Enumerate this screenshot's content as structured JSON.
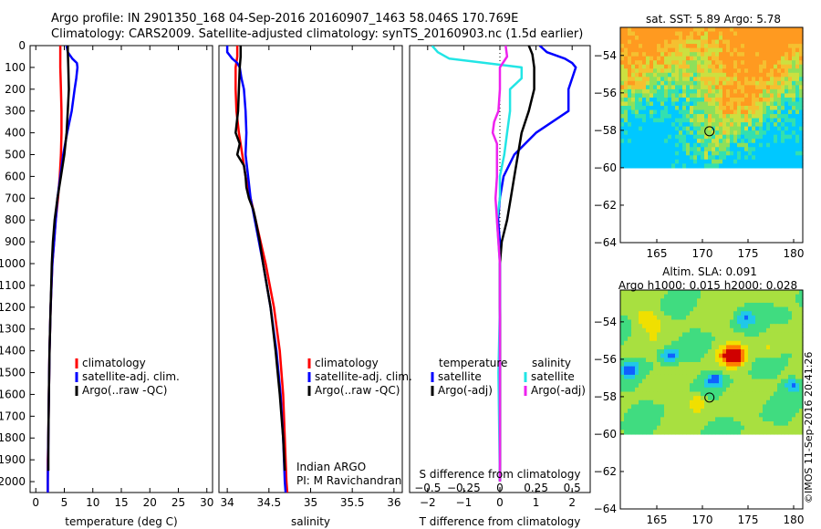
{
  "header": {
    "line1": "Argo profile: IN 2901350_168 04-Sep-2016 20160907_1463 58.046S 170.769E",
    "line2": "Climatology: CARS2009. Satellite-adjusted climatology: synTS_20160903.nc (1.5d earlier)"
  },
  "colors": {
    "climatology": "#ff0000",
    "satellite": "#0000ff",
    "argo": "#000000",
    "sal_satellite": "#22e5e5",
    "sal_argo": "#ee22ee"
  },
  "chart_data": [
    {
      "type": "line",
      "id": "temperature",
      "xlabel": "temperature (deg C)",
      "ylabel": "",
      "xlim": [
        -1,
        31
      ],
      "ylim": [
        2050,
        0
      ],
      "xticks": [
        0,
        5,
        10,
        15,
        20,
        25,
        30
      ],
      "yticks": [
        0,
        100,
        200,
        300,
        400,
        500,
        600,
        700,
        800,
        900,
        1000,
        1100,
        1200,
        1300,
        1400,
        1500,
        1600,
        1700,
        1800,
        1900,
        2000
      ],
      "legend": [
        "climatology",
        "satellite-adj. clim.",
        "Argo(..raw -QC)"
      ],
      "legend_position": "lower-right",
      "series": [
        {
          "name": "climatology",
          "color": "#ff0000",
          "depth": [
            0,
            50,
            100,
            200,
            300,
            400,
            500,
            600,
            700,
            800,
            900,
            1000,
            1200,
            1400,
            1600,
            1800,
            1900,
            2050
          ],
          "values": [
            4.3,
            4.3,
            4.3,
            4.4,
            4.5,
            4.5,
            4.4,
            4.2,
            3.9,
            3.5,
            3.2,
            2.9,
            2.6,
            2.4,
            2.3,
            2.2,
            2.1,
            2.1
          ]
        },
        {
          "name": "satellite-adj. clim.",
          "color": "#0000ff",
          "depth": [
            0,
            30,
            60,
            80,
            100,
            150,
            200,
            300,
            400,
            500,
            600,
            700,
            800,
            900,
            1000,
            1200,
            1400,
            1600,
            1800,
            2000,
            2050
          ],
          "values": [
            5.4,
            5.6,
            6.4,
            7.2,
            7.3,
            7.1,
            6.8,
            6.3,
            5.5,
            4.8,
            4.3,
            3.8,
            3.5,
            3.2,
            2.9,
            2.6,
            2.4,
            2.3,
            2.2,
            2.1,
            2.1
          ]
        },
        {
          "name": "Argo(..raw -QC)",
          "color": "#000000",
          "depth": [
            0,
            20,
            100,
            200,
            300,
            400,
            500,
            600,
            700,
            800,
            900,
            1000,
            1200,
            1400,
            1600,
            1800,
            1950
          ],
          "values": [
            5.6,
            5.6,
            5.7,
            5.8,
            5.6,
            5.4,
            5.0,
            4.4,
            3.8,
            3.3,
            3.0,
            2.8,
            2.6,
            2.4,
            2.3,
            2.2,
            2.2
          ]
        }
      ]
    },
    {
      "type": "line",
      "id": "salinity",
      "xlabel": "salinity",
      "ylabel": "",
      "xlim": [
        33.9,
        36.1
      ],
      "ylim": [
        2050,
        0
      ],
      "xticks": [
        34,
        34.5,
        35,
        35.5,
        36
      ],
      "xticklabels": [
        "34",
        "34.5",
        "35",
        "35.5",
        "36"
      ],
      "legend": [
        "climatology",
        "satellite-adj. clim.",
        "Argo(..raw -QC)"
      ],
      "legend_position": "lower-right",
      "annotation": [
        "Indian ARGO",
        "PI: M Ravichandran"
      ],
      "series": [
        {
          "name": "climatology",
          "color": "#ff0000",
          "depth": [
            0,
            50,
            100,
            200,
            300,
            400,
            500,
            600,
            700,
            800,
            900,
            1000,
            1200,
            1400,
            1600,
            1800,
            2000,
            2050
          ],
          "values": [
            34.12,
            34.12,
            34.1,
            34.1,
            34.11,
            34.14,
            34.18,
            34.22,
            34.28,
            34.34,
            34.4,
            34.46,
            34.56,
            34.63,
            34.67,
            34.69,
            34.71,
            34.72
          ]
        },
        {
          "name": "satellite-adj. clim.",
          "color": "#0000ff",
          "depth": [
            0,
            30,
            60,
            80,
            100,
            150,
            200,
            300,
            400,
            500,
            600,
            700,
            800,
            900,
            1000,
            1200,
            1400,
            1600,
            1800,
            2000,
            2050
          ],
          "values": [
            34.0,
            34.0,
            34.06,
            34.12,
            34.15,
            34.17,
            34.2,
            34.22,
            34.23,
            34.22,
            34.25,
            34.28,
            34.33,
            34.38,
            34.43,
            34.52,
            34.59,
            34.64,
            34.67,
            34.69,
            34.7
          ]
        },
        {
          "name": "Argo(..raw -QC)",
          "color": "#000000",
          "depth": [
            0,
            50,
            100,
            200,
            300,
            400,
            450,
            500,
            550,
            600,
            650,
            700,
            750,
            800,
            900,
            1000,
            1200,
            1400,
            1600,
            1800,
            1950
          ],
          "values": [
            34.16,
            34.16,
            34.15,
            34.14,
            34.13,
            34.1,
            34.15,
            34.12,
            34.2,
            34.22,
            34.23,
            34.26,
            34.31,
            34.34,
            34.39,
            34.43,
            34.52,
            34.58,
            34.63,
            34.67,
            34.69
          ]
        }
      ]
    },
    {
      "type": "line",
      "id": "difference",
      "xlabel": "T difference from climatology",
      "xlabel_top": "S difference from climatology",
      "ylabel": "",
      "xlim": [
        -2.5,
        2.5
      ],
      "ylim": [
        2050,
        0
      ],
      "xticks": [
        -2,
        -1,
        0,
        1,
        2
      ],
      "xticklabels": [
        "−2",
        "−1",
        "0",
        "1",
        "2"
      ],
      "s_ticks": [
        -0.5,
        -0.25,
        0,
        0.25,
        0.5
      ],
      "s_ticklabels": [
        "−0.5",
        "−0.25",
        "0",
        "0.25",
        "0.5"
      ],
      "legend_temperature": [
        "temperature",
        "satellite",
        "Argo(-adj)"
      ],
      "legend_salinity": [
        "salinity",
        "satellite",
        "Argo(-adj)"
      ],
      "legend_position": "lower",
      "series": [
        {
          "name": "satellite",
          "color": "#0000ff",
          "depth": [
            0,
            30,
            60,
            80,
            100,
            150,
            200,
            250,
            300,
            400,
            500,
            600,
            700,
            800,
            900,
            1000,
            1200,
            1500,
            2000
          ],
          "values": [
            1.1,
            1.3,
            1.8,
            2.0,
            2.1,
            2.0,
            1.9,
            1.9,
            1.9,
            1.0,
            0.4,
            0.1,
            0.0,
            -0.05,
            0.0,
            0.0,
            0.0,
            0.0,
            0.0
          ]
        },
        {
          "name": "Argo(-adj)",
          "color": "#000000",
          "depth": [
            0,
            20,
            40,
            100,
            200,
            300,
            400,
            500,
            600,
            700,
            800,
            900,
            1000,
            1200,
            1500,
            2000
          ],
          "values": [
            0.8,
            0.85,
            0.9,
            0.95,
            0.95,
            0.8,
            0.6,
            0.5,
            0.4,
            0.3,
            0.2,
            0.05,
            0.0,
            0.0,
            0.0,
            0.0
          ]
        },
        {
          "name": "satellite S",
          "color": "#22e5e5",
          "depth": [
            0,
            30,
            60,
            100,
            150,
            200,
            300,
            400,
            500,
            600,
            700,
            800,
            1000,
            1200,
            1500,
            2000
          ],
          "values": [
            -0.47,
            -0.43,
            -0.35,
            0.15,
            0.15,
            0.07,
            0.07,
            0.05,
            0.03,
            0.0,
            0.0,
            -0.02,
            0.0,
            0.0,
            -0.01,
            0.0
          ]
        },
        {
          "name": "Argo(-adj) S",
          "color": "#ee22ee",
          "depth": [
            0,
            50,
            100,
            200,
            300,
            350,
            400,
            450,
            500,
            600,
            700,
            800,
            900,
            1000,
            1100,
            1200,
            1500,
            2000
          ],
          "values": [
            0.04,
            0.05,
            0.0,
            0.0,
            -0.01,
            -0.04,
            -0.05,
            -0.02,
            -0.02,
            -0.02,
            -0.03,
            -0.02,
            -0.01,
            0.0,
            0.0,
            0.0,
            0.0,
            0.0
          ]
        }
      ]
    },
    {
      "type": "heatmap",
      "id": "sst_map",
      "title": "sat. SST: 5.89 Argo: 5.78",
      "xlim": [
        161,
        181
      ],
      "ylim": [
        -64,
        -52.5
      ],
      "xticks": [
        165,
        170,
        175,
        180
      ],
      "yticks": [
        -54,
        -56,
        -58,
        -60,
        -62,
        -64
      ],
      "yticklabels": [
        "−54",
        "−56",
        "−58",
        "−60",
        "−62",
        "−64"
      ],
      "data_ylim": [
        -60,
        -52.5
      ],
      "marker": {
        "lon": 170.769,
        "lat": -58.046
      },
      "palette": [
        "#00c8ff",
        "#33e0b0",
        "#8ee05a",
        "#cce040",
        "#f5c030",
        "#ff9a20"
      ]
    },
    {
      "type": "heatmap",
      "id": "sla_map",
      "title": "Altim. SLA: 0.091",
      "subtitle": "Argo h1000: 0.015 h2000: 0.028",
      "xlim": [
        161,
        181
      ],
      "ylim": [
        -64,
        -52.3
      ],
      "xticks": [
        165,
        170,
        175,
        180
      ],
      "yticks": [
        -54,
        -56,
        -58,
        -60,
        -62,
        -64
      ],
      "yticklabels": [
        "−54",
        "−56",
        "−58",
        "−60",
        "−62",
        "−64"
      ],
      "data_ylim": [
        -60,
        -52.3
      ],
      "marker": {
        "lon": 170.769,
        "lat": -58.046
      },
      "palette": [
        "#1060ff",
        "#20c8e8",
        "#40dc80",
        "#a8e040",
        "#f0e000",
        "#ff8000",
        "#d00000"
      ]
    }
  ],
  "credit": "©IMOS 11-Sep-2016 20:41:26"
}
